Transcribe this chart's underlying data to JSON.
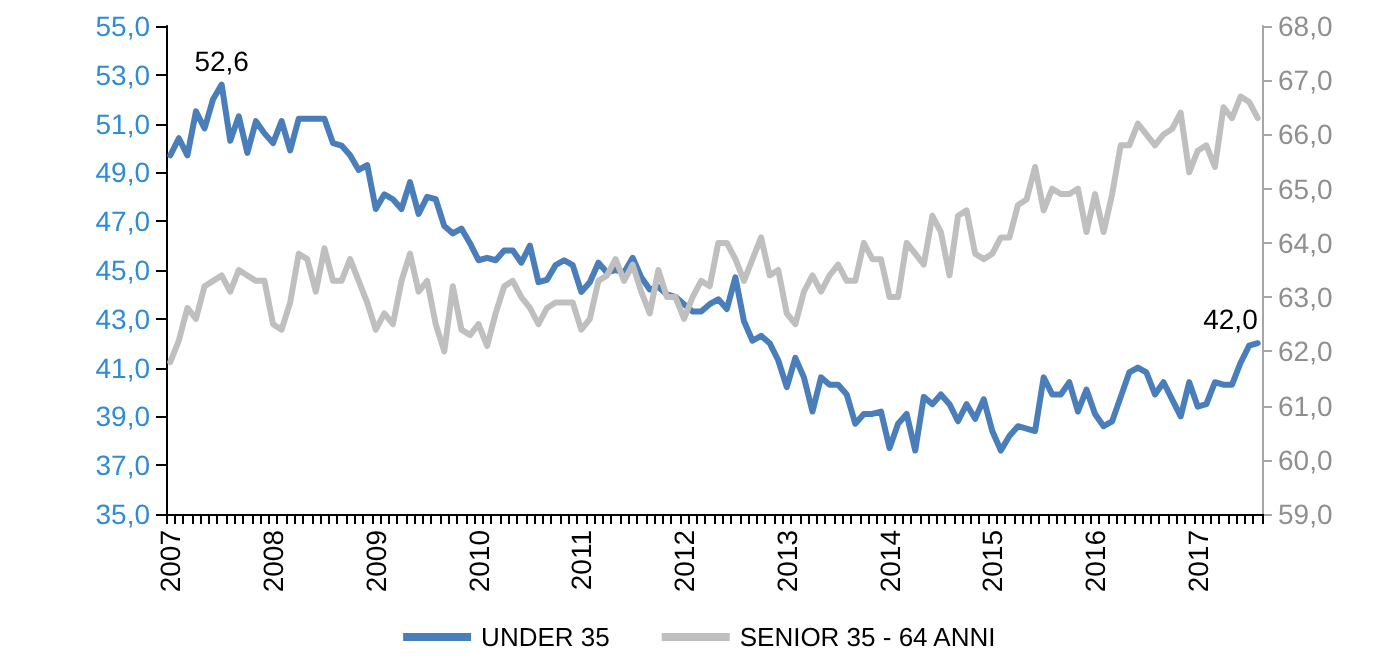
{
  "chart_data": {
    "type": "line",
    "categories": [
      "2007",
      null,
      null,
      null,
      null,
      null,
      null,
      null,
      null,
      null,
      null,
      null,
      "2008",
      null,
      null,
      null,
      null,
      null,
      null,
      null,
      null,
      null,
      null,
      null,
      "2009",
      null,
      null,
      null,
      null,
      null,
      null,
      null,
      null,
      null,
      null,
      null,
      "2010",
      null,
      null,
      null,
      null,
      null,
      null,
      null,
      null,
      null,
      null,
      null,
      "2011",
      null,
      null,
      null,
      null,
      null,
      null,
      null,
      null,
      null,
      null,
      null,
      "2012",
      null,
      null,
      null,
      null,
      null,
      null,
      null,
      null,
      null,
      null,
      null,
      "2013",
      null,
      null,
      null,
      null,
      null,
      null,
      null,
      null,
      null,
      null,
      null,
      "2014",
      null,
      null,
      null,
      null,
      null,
      null,
      null,
      null,
      null,
      null,
      null,
      "2015",
      null,
      null,
      null,
      null,
      null,
      null,
      null,
      null,
      null,
      null,
      null,
      "2016",
      null,
      null,
      null,
      null,
      null,
      null,
      null,
      null,
      null,
      null,
      null,
      "2017",
      null,
      null,
      null,
      null,
      null,
      null,
      null
    ],
    "series": [
      {
        "name": "UNDER 35",
        "color": "#4a7ebb",
        "values": [
          49.7,
          50.4,
          49.7,
          51.5,
          50.8,
          52.0,
          52.6,
          50.3,
          51.3,
          49.8,
          51.1,
          50.6,
          50.2,
          51.1,
          49.9,
          51.2,
          51.2,
          51.2,
          51.2,
          50.2,
          50.1,
          49.7,
          49.1,
          49.3,
          47.5,
          48.1,
          47.9,
          47.5,
          48.6,
          47.3,
          48.0,
          47.9,
          46.8,
          46.5,
          46.7,
          46.1,
          45.4,
          45.5,
          45.4,
          45.8,
          45.8,
          45.3,
          46.0,
          44.5,
          44.6,
          45.2,
          45.4,
          45.2,
          44.1,
          44.5,
          45.3,
          44.9,
          45.0,
          44.9,
          45.5,
          44.7,
          44.2,
          44.3,
          44.0,
          43.9,
          43.6,
          43.3,
          43.3,
          43.6,
          43.8,
          43.4,
          44.7,
          42.9,
          42.1,
          42.3,
          42.0,
          41.3,
          40.2,
          41.4,
          40.6,
          39.2,
          40.6,
          40.3,
          40.3,
          39.9,
          38.7,
          39.1,
          39.1,
          39.2,
          37.7,
          38.7,
          39.1,
          37.6,
          39.8,
          39.5,
          39.9,
          39.5,
          38.8,
          39.5,
          38.9,
          39.7,
          38.4,
          37.6,
          38.2,
          38.6,
          38.5,
          38.4,
          40.6,
          39.9,
          39.9,
          40.4,
          39.2,
          40.1,
          39.1,
          38.6,
          38.8,
          39.8,
          40.8,
          41.0,
          40.8,
          39.9,
          40.4,
          39.7,
          39.0,
          40.4,
          39.4,
          39.5,
          40.4,
          40.3,
          40.3,
          41.2,
          41.9,
          42.0
        ],
        "value_labels": [
          null,
          null,
          null,
          null,
          null,
          null,
          "52,6",
          null,
          null,
          null,
          null,
          null,
          null,
          null,
          null,
          null,
          null,
          null,
          null,
          null,
          null,
          null,
          null,
          null,
          null,
          null,
          null,
          null,
          null,
          null,
          null,
          null,
          null,
          null,
          null,
          null,
          null,
          null,
          null,
          null,
          null,
          null,
          null,
          null,
          null,
          null,
          null,
          null,
          null,
          null,
          null,
          null,
          null,
          null,
          null,
          null,
          null,
          null,
          null,
          null,
          null,
          null,
          null,
          null,
          null,
          null,
          null,
          null,
          null,
          null,
          null,
          null,
          null,
          null,
          null,
          null,
          null,
          null,
          null,
          null,
          null,
          null,
          null,
          null,
          null,
          null,
          null,
          null,
          null,
          null,
          null,
          null,
          null,
          null,
          null,
          null,
          null,
          null,
          null,
          null,
          null,
          null,
          null,
          null,
          null,
          null,
          null,
          null,
          null,
          null,
          null,
          null,
          null,
          null,
          null,
          null,
          null,
          null,
          null,
          null,
          null,
          null,
          null,
          null,
          null,
          null,
          null,
          "42,0"
        ]
      },
      {
        "name": "SENIOR 35 - 64 ANNI",
        "color": "#bfbfbf",
        "axis": "y2",
        "values": [
          61.8,
          62.2,
          62.8,
          62.6,
          63.2,
          63.3,
          63.4,
          63.1,
          63.5,
          63.4,
          63.3,
          63.3,
          62.5,
          62.4,
          62.9,
          63.8,
          63.7,
          63.1,
          63.9,
          63.3,
          63.3,
          63.7,
          63.3,
          62.9,
          62.4,
          62.7,
          62.5,
          63.3,
          63.8,
          63.1,
          63.3,
          62.5,
          62.0,
          63.2,
          62.4,
          62.3,
          62.5,
          62.1,
          62.7,
          63.2,
          63.3,
          63.0,
          62.8,
          62.5,
          62.8,
          62.9,
          62.9,
          62.9,
          62.4,
          62.6,
          63.3,
          63.4,
          63.7,
          63.3,
          63.6,
          63.1,
          62.7,
          63.5,
          63.0,
          63.0,
          62.6,
          63.0,
          63.3,
          63.2,
          64.0,
          64.0,
          63.7,
          63.3,
          63.7,
          64.1,
          63.4,
          63.5,
          62.7,
          62.5,
          63.1,
          63.4,
          63.1,
          63.4,
          63.6,
          63.3,
          63.3,
          64.0,
          63.7,
          63.7,
          63.0,
          63.0,
          64.0,
          63.8,
          63.6,
          64.5,
          64.2,
          63.4,
          64.5,
          64.6,
          63.8,
          63.7,
          63.8,
          64.1,
          64.1,
          64.7,
          64.8,
          65.4,
          64.6,
          65.0,
          64.9,
          64.9,
          65.0,
          64.2,
          64.9,
          64.2,
          64.9,
          65.8,
          65.8,
          66.2,
          66.0,
          65.8,
          66.0,
          66.1,
          66.4,
          65.3,
          65.7,
          65.8,
          65.4,
          66.5,
          66.3,
          66.7,
          66.6,
          66.3
        ]
      }
    ],
    "ylim": [
      35,
      55
    ],
    "yticks": [
      {
        "value": 35,
        "label": "35,0"
      },
      {
        "value": 37,
        "label": "37,0"
      },
      {
        "value": 39,
        "label": "39,0"
      },
      {
        "value": 41,
        "label": "41,0"
      },
      {
        "value": 43,
        "label": "43,0"
      },
      {
        "value": 45,
        "label": "45,0"
      },
      {
        "value": 47,
        "label": "47,0"
      },
      {
        "value": 49,
        "label": "49,0"
      },
      {
        "value": 51,
        "label": "51,0"
      },
      {
        "value": 53,
        "label": "53,0"
      },
      {
        "value": 55,
        "label": "55,0"
      }
    ],
    "y2lim": [
      59,
      68
    ],
    "y2ticks": [
      {
        "value": 59,
        "label": "59,0"
      },
      {
        "value": 60,
        "label": "60,0"
      },
      {
        "value": 61,
        "label": "61,0"
      },
      {
        "value": 62,
        "label": "62,0"
      },
      {
        "value": 63,
        "label": "63,0"
      },
      {
        "value": 64,
        "label": "64,0"
      },
      {
        "value": 65,
        "label": "65,0"
      },
      {
        "value": 66,
        "label": "66,0"
      },
      {
        "value": 67,
        "label": "67,0"
      },
      {
        "value": 68,
        "label": "68,0"
      }
    ],
    "legend": "bottom",
    "marker": "none",
    "line_style": "solid",
    "grid": false
  }
}
